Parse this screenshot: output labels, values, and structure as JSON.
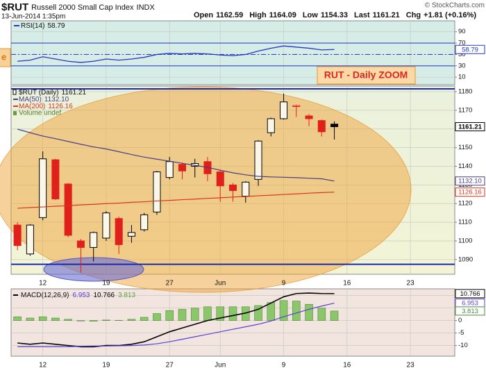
{
  "header": {
    "symbol": "$RUT",
    "name": "Russell 2000 Small Cap Index",
    "exchange": "INDX",
    "timestamp": "13-Jun-2014 1:35pm",
    "quote": [
      {
        "label": "Open",
        "value": 1162.59
      },
      {
        "label": "High",
        "value": 1164.09
      },
      {
        "label": "Low",
        "value": 1154.33
      },
      {
        "label": "Last",
        "value": 1161.21
      },
      {
        "label": "Chg",
        "value": "+1.81 (+0.16%)"
      }
    ],
    "credit": "© StockCharts.com"
  },
  "chart_data": [
    {
      "type": "line",
      "series": [
        {
          "name": "RSI(14)",
          "color": "#2436c2",
          "values": [
            38,
            40,
            46,
            42,
            38,
            36,
            38,
            42,
            40,
            42,
            45,
            50,
            52,
            51,
            52,
            51,
            49,
            48,
            50,
            56,
            61,
            65,
            63,
            61,
            58,
            58.79,
            null,
            null,
            null,
            null,
            null,
            null,
            null,
            null,
            null
          ]
        }
      ],
      "ylim": [
        -2,
        108
      ],
      "yticks": [
        10,
        30,
        50,
        70,
        90
      ],
      "hlines": [
        70,
        50,
        30
      ],
      "grid": true
    },
    {
      "type": "candlestick",
      "name": "$RUT (Daily)",
      "up_color": "#000000",
      "down_color": "#e0201b",
      "categories": [
        null,
        null,
        "12",
        null,
        null,
        null,
        null,
        "19",
        null,
        null,
        null,
        null,
        "27",
        null,
        null,
        null,
        "Jun",
        null,
        null,
        null,
        null,
        "9",
        null,
        null,
        null,
        null,
        "16",
        null,
        null,
        null,
        null,
        "23",
        null,
        null,
        null
      ],
      "open": [
        1108.5,
        1093,
        1112.5,
        1143.5,
        1130.5,
        1100,
        1096.5,
        1101.5,
        1112,
        1102.5,
        1106,
        1115.5,
        1134,
        1141,
        1140,
        1142.5,
        1137,
        1130,
        1124,
        1133,
        1158,
        1165.5,
        1172,
        1167,
        1164.5,
        1162.59,
        null,
        null,
        null,
        null,
        null,
        null,
        null,
        null,
        null
      ],
      "high": [
        1110,
        1109,
        1148,
        1144,
        1131,
        1101,
        1105,
        1116,
        1113,
        1108.5,
        1115,
        1137.5,
        1145,
        1142,
        1144,
        1145,
        1138,
        1131,
        1132,
        1154,
        1166,
        1179,
        1173,
        1168,
        1165,
        1164.09,
        null,
        null,
        null,
        null,
        null,
        null,
        null,
        null,
        null
      ],
      "low": [
        1095,
        1092,
        1111,
        1122,
        1102,
        1083,
        1089,
        1100,
        1093,
        1099,
        1105,
        1114,
        1133,
        1133,
        1134,
        1132,
        1121,
        1121,
        1120.5,
        1129.5,
        1156,
        1165,
        1166.5,
        1161.5,
        1156,
        1154.33,
        null,
        null,
        null,
        null,
        null,
        null,
        null,
        null,
        null
      ],
      "close": [
        1097.5,
        1108.5,
        1144,
        1122.5,
        1103,
        1096.5,
        1104.5,
        1115,
        1098,
        1104.5,
        1114,
        1137,
        1142.5,
        1137.5,
        1141.5,
        1136,
        1129.5,
        1127,
        1131.5,
        1153.5,
        1165.5,
        1174.5,
        1172.5,
        1165.5,
        1158.5,
        1161.21,
        null,
        null,
        null,
        null,
        null,
        null,
        null,
        null,
        null
      ],
      "series": [
        {
          "name": "MA(50)",
          "color": "#4a3c82",
          "values": [
            1159.9,
            1158,
            1156.2,
            1154.8,
            1153.3,
            1151.8,
            1150.4,
            1149.3,
            1147.8,
            1146.3,
            1144.9,
            1143.8,
            1142.7,
            1141.6,
            1140.5,
            1139.4,
            1137.9,
            1136.5,
            1135.4,
            1134.6,
            1134.3,
            1134.1,
            1133.9,
            1133.6,
            1133.3,
            1132.1,
            null,
            null,
            null,
            null,
            null,
            null,
            null,
            null,
            null
          ],
          "value_labels": [
            null,
            null,
            null,
            null,
            null,
            null,
            null,
            null,
            null,
            null,
            null,
            null,
            null,
            null,
            null,
            null,
            null,
            null,
            null,
            null,
            null,
            null,
            null,
            null,
            null,
            "1132.10",
            null,
            null,
            null,
            null,
            null,
            null,
            null,
            null,
            null
          ]
        },
        {
          "name": "MA(200)",
          "color": "#d8361b",
          "values": [
            1117.5,
            1117.9,
            1118.2,
            1118.6,
            1118.9,
            1119.3,
            1119.6,
            1120,
            1120.3,
            1120.7,
            1121,
            1121.4,
            1121.7,
            1122.1,
            1122.4,
            1122.8,
            1123.1,
            1123.5,
            1123.8,
            1124.2,
            1124.5,
            1124.9,
            1125.2,
            1125.6,
            1125.9,
            1126.16,
            null,
            null,
            null,
            null,
            null,
            null,
            null,
            null,
            null
          ]
        }
      ],
      "volume_label": "Volume undef",
      "annotations": [
        "RUT - Daily ZOOM",
        "e"
      ],
      "hlines": [
        1181.5,
        1087.5
      ],
      "ylim": [
        1082.5,
        1182.6
      ],
      "yticks": [
        1090,
        1100,
        1110,
        1120,
        1130,
        1140,
        1150,
        1160,
        1170,
        1180
      ],
      "grid": true
    },
    {
      "type": "macd",
      "title": "MACD(12,26,9)",
      "categories": [
        null,
        null,
        "12",
        null,
        null,
        null,
        null,
        "19",
        null,
        null,
        null,
        null,
        "27",
        null,
        null,
        null,
        "Jun",
        null,
        null,
        null,
        null,
        "9",
        null,
        null,
        null,
        null,
        "16",
        null,
        null,
        null,
        null,
        "23",
        null,
        null,
        null
      ],
      "series": [
        {
          "style": "bar",
          "color": "#8cc66a",
          "values": [
            1.5,
            1,
            1.5,
            1,
            0.5,
            -0.2,
            -0.3,
            0.2,
            0.1,
            0.5,
            1.3,
            2.8,
            4,
            4.5,
            5,
            5.5,
            5.5,
            5.5,
            5.5,
            6,
            7.2,
            8,
            7.8,
            6.5,
            5,
            3.813,
            null,
            null,
            null,
            null,
            null,
            null,
            null,
            null,
            null
          ]
        },
        {
          "style": "line",
          "color": "#000000",
          "values": [
            -9,
            -9.5,
            -9,
            -9.5,
            -10,
            -10.5,
            -10.5,
            -10,
            -10,
            -9.5,
            -8.5,
            -6.5,
            -4.5,
            -3,
            -1.5,
            0,
            1,
            2,
            3,
            4.5,
            7,
            9.5,
            10.8,
            11,
            10.8,
            10.766,
            null,
            null,
            null,
            null,
            null,
            null,
            null,
            null,
            null
          ]
        },
        {
          "style": "line",
          "color": "#5a3fd8",
          "values": [
            -10.5,
            -10.5,
            -10.5,
            -10.5,
            -10.5,
            -10.3,
            -10.2,
            -10.2,
            -10.1,
            -10,
            -9.8,
            -9.3,
            -8.5,
            -7.5,
            -6.5,
            -5.5,
            -4.5,
            -3.5,
            -2.5,
            -1.5,
            -0.2,
            1.5,
            3,
            4.5,
            5.8,
            6.953,
            null,
            null,
            null,
            null,
            null,
            null,
            null,
            null,
            null
          ]
        }
      ],
      "ylim": [
        -14,
        12.4
      ],
      "yticks": [
        -10,
        -5,
        0,
        5,
        10
      ],
      "grid": true
    }
  ]
}
